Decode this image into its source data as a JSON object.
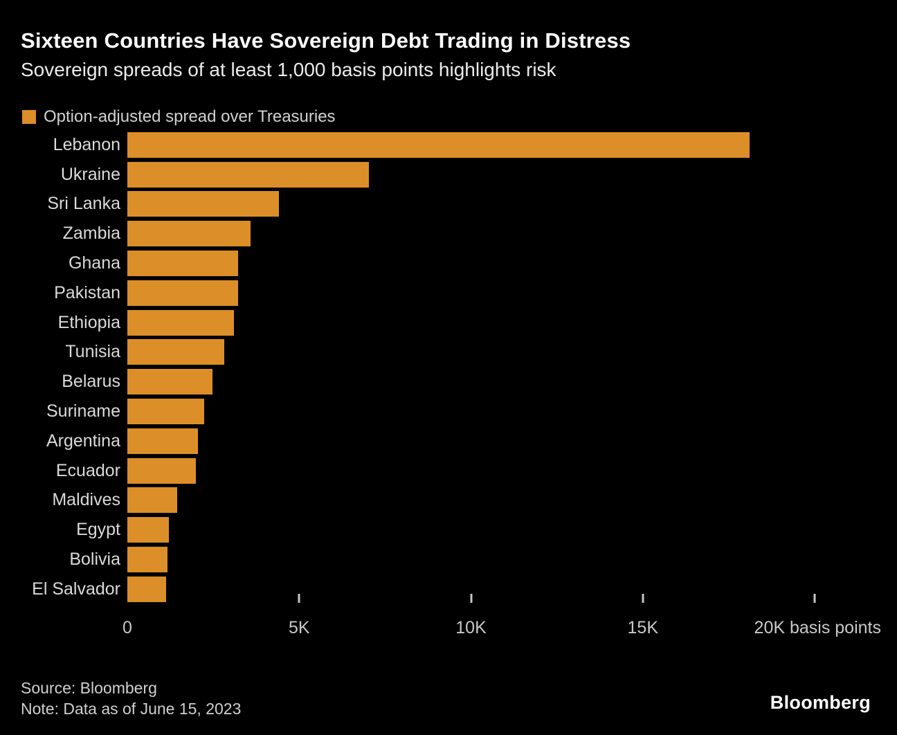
{
  "header": {
    "title": "Sixteen Countries Have Sovereign Debt Trading in Distress",
    "subtitle": "Sovereign spreads of at least 1,000 basis points highlights risk"
  },
  "legend": {
    "label": "Option-adjusted spread over Treasuries",
    "swatch_color": "#DC8E28"
  },
  "chart_data": {
    "type": "bar",
    "orientation": "horizontal",
    "title": "Sixteen Countries Have Sovereign Debt Trading in Distress",
    "subtitle": "Sovereign spreads of at least 1,000 basis points highlights risk",
    "series_name": "Option-adjusted spread over Treasuries",
    "categories": [
      "Lebanon",
      "Ukraine",
      "Sri Lanka",
      "Zambia",
      "Ghana",
      "Pakistan",
      "Ethiopia",
      "Tunisia",
      "Belarus",
      "Suriname",
      "Argentina",
      "Ecuador",
      "Maldives",
      "Egypt",
      "Bolivia",
      "El Salvador"
    ],
    "values": [
      18100,
      7030,
      4410,
      3580,
      3220,
      3220,
      3100,
      2820,
      2480,
      2240,
      2050,
      2000,
      1450,
      1210,
      1170,
      1130
    ],
    "xlabel": "basis points",
    "ylabel": "",
    "xlim": [
      0,
      20000
    ],
    "x_ticks": [
      {
        "value": 0,
        "label": "0"
      },
      {
        "value": 5000,
        "label": "5K"
      },
      {
        "value": 10000,
        "label": "10K"
      },
      {
        "value": 15000,
        "label": "15K"
      },
      {
        "value": 20000,
        "label": "20K"
      }
    ],
    "x_unit": "basis points",
    "bar_color": "#DC8E28",
    "background_color": "#000000",
    "grid": false,
    "legend_position": "top-left"
  },
  "footer": {
    "source": "Source: Bloomberg",
    "note": "Note: Data as of June 15, 2023",
    "logo": "Bloomberg"
  }
}
